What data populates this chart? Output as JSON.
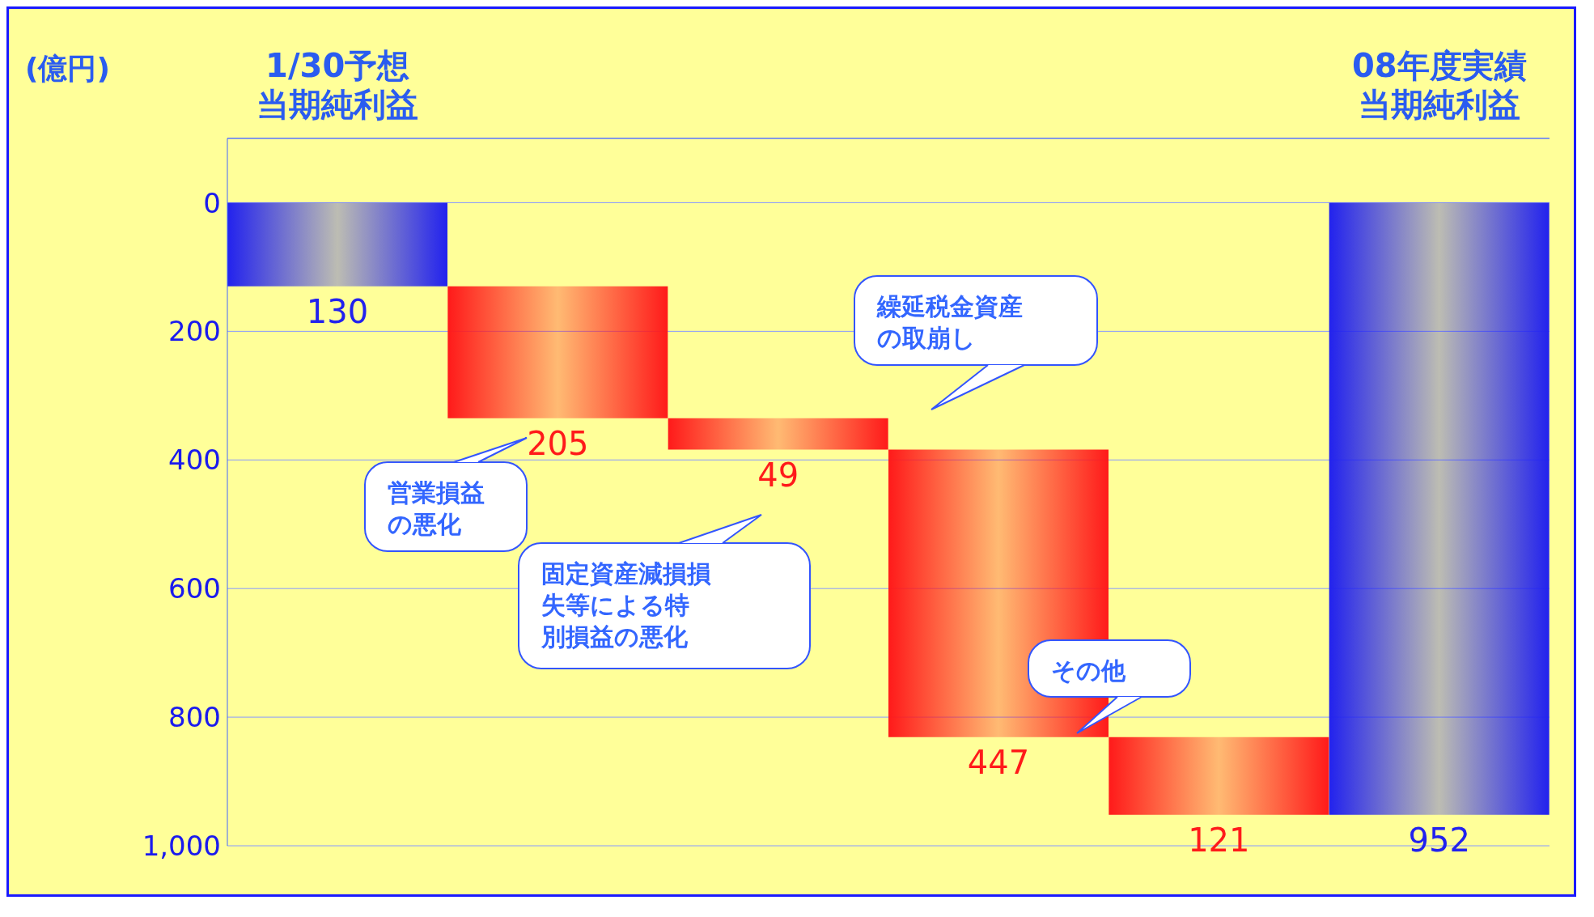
{
  "chart_data": {
    "type": "bar",
    "ylabel": "(億円)",
    "categories": [
      "1/30予想当期純利益",
      null,
      null,
      null,
      null,
      "08年度実績当期純利益"
    ],
    "values": [
      130,
      205,
      49,
      447,
      121,
      952
    ],
    "base": [
      0,
      130,
      335,
      384,
      831,
      0
    ],
    "colors": [
      "#2222ee",
      "#ff1a1a",
      "#ff1a1a",
      "#ff1a1a",
      "#ff1a1a",
      "#2222ee"
    ],
    "data_labels": true,
    "ylim": [
      1000,
      -100
    ],
    "yticks": [
      0,
      200,
      400,
      600,
      800,
      {
        "value": 1000,
        "label": "1,000"
      }
    ],
    "grid": "y",
    "annotations": [
      "営業損益の悪化",
      "固定資産減損損失等による特別損益の悪化",
      "繰延税金資産の取崩し",
      "その他"
    ]
  }
}
